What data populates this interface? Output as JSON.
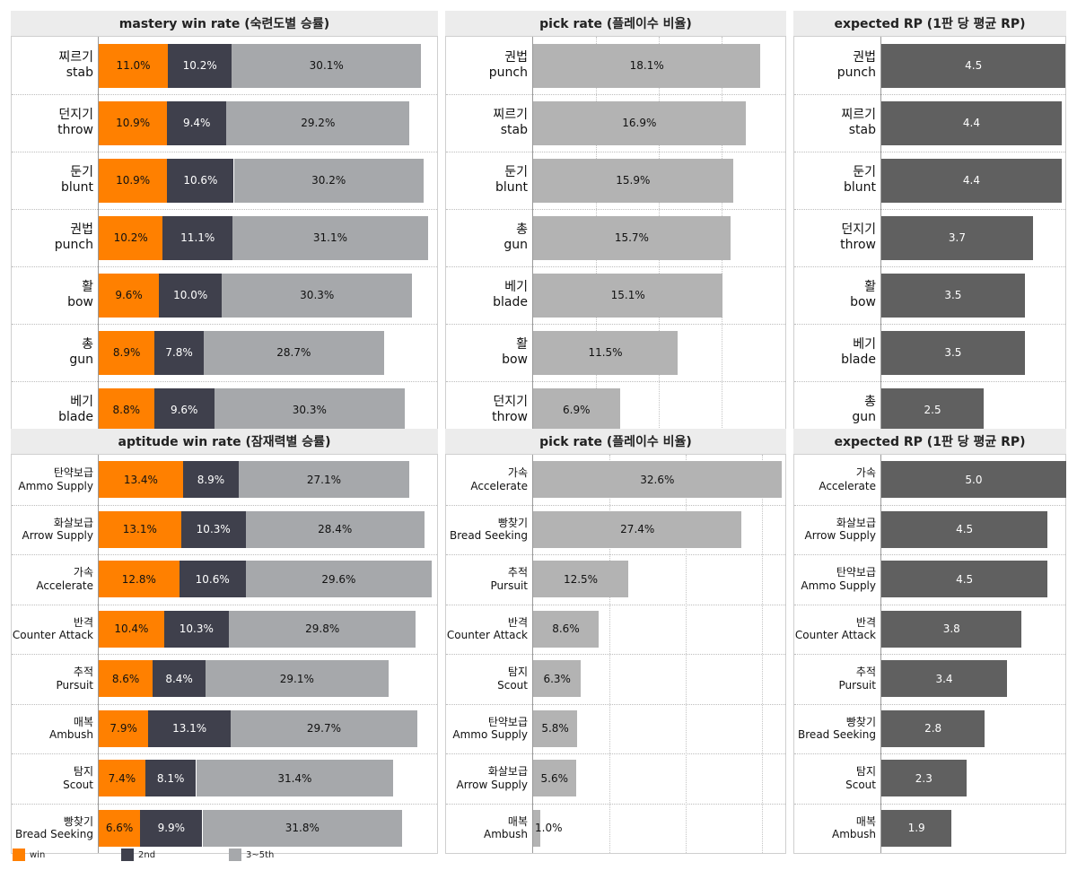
{
  "colors": {
    "win": "#ff8000",
    "second": "#3f404c",
    "third_fifth": "#a6a8ab",
    "pick": "#b3b3b3",
    "rp": "#606060"
  },
  "legend": [
    {
      "key": "win",
      "label": "win"
    },
    {
      "key": "second",
      "label": "2nd"
    },
    {
      "key": "third_fifth",
      "label": "3~5th"
    }
  ],
  "chart_data": [
    {
      "type": "bar",
      "stacked": true,
      "title": "mastery win rate (숙련도별 승률)",
      "categories": [
        {
          "ko": "찌르기",
          "en": "stab"
        },
        {
          "ko": "던지기",
          "en": "throw"
        },
        {
          "ko": "둔기",
          "en": "blunt"
        },
        {
          "ko": "권법",
          "en": "punch"
        },
        {
          "ko": "활",
          "en": "bow"
        },
        {
          "ko": "총",
          "en": "gun"
        },
        {
          "ko": "베기",
          "en": "blade"
        }
      ],
      "xlim": [
        0,
        60
      ],
      "series": [
        {
          "name": "win",
          "values": [
            11.0,
            10.9,
            10.9,
            10.2,
            9.6,
            8.9,
            8.8
          ],
          "labels": [
            "11.0%",
            "10.9%",
            "10.9%",
            "10.2%",
            "9.6%",
            "8.9%",
            "8.8%"
          ]
        },
        {
          "name": "2nd",
          "values": [
            10.2,
            9.4,
            10.6,
            11.1,
            10.0,
            7.8,
            9.6
          ],
          "labels": [
            "10.2%",
            "9.4%",
            "10.6%",
            "11.1%",
            "10.0%",
            "7.8%",
            "9.6%"
          ]
        },
        {
          "name": "3~5th",
          "values": [
            30.1,
            29.2,
            30.2,
            31.1,
            30.3,
            28.7,
            30.3
          ],
          "labels": [
            "30.1%",
            "29.2%",
            "30.2%",
            "31.1%",
            "30.3%",
            "28.7%",
            "30.3%"
          ]
        }
      ]
    },
    {
      "type": "bar",
      "title": "pick rate (플레이수 비율)",
      "categories": [
        {
          "ko": "권법",
          "en": "punch"
        },
        {
          "ko": "찌르기",
          "en": "stab"
        },
        {
          "ko": "둔기",
          "en": "blunt"
        },
        {
          "ko": "총",
          "en": "gun"
        },
        {
          "ko": "베기",
          "en": "blade"
        },
        {
          "ko": "활",
          "en": "bow"
        },
        {
          "ko": "던지기",
          "en": "throw"
        }
      ],
      "xlim": [
        0,
        20
      ],
      "gridlines": [
        5,
        10,
        15
      ],
      "series": [
        {
          "name": "pick rate",
          "values": [
            18.1,
            16.9,
            15.9,
            15.7,
            15.1,
            11.5,
            6.9
          ],
          "labels": [
            "18.1%",
            "16.9%",
            "15.9%",
            "15.7%",
            "15.1%",
            "11.5%",
            "6.9%"
          ]
        }
      ]
    },
    {
      "type": "bar",
      "title": "expected RP (1판 당 평균 RP)",
      "categories": [
        {
          "ko": "권법",
          "en": "punch"
        },
        {
          "ko": "찌르기",
          "en": "stab"
        },
        {
          "ko": "둔기",
          "en": "blunt"
        },
        {
          "ko": "던지기",
          "en": "throw"
        },
        {
          "ko": "활",
          "en": "bow"
        },
        {
          "ko": "베기",
          "en": "blade"
        },
        {
          "ko": "총",
          "en": "gun"
        }
      ],
      "xlim": [
        0,
        4.6
      ],
      "series": [
        {
          "name": "expected RP",
          "values": [
            4.5,
            4.4,
            4.4,
            3.7,
            3.5,
            3.5,
            2.5
          ],
          "labels": [
            "4.5",
            "4.4",
            "4.4",
            "3.7",
            "3.5",
            "3.5",
            "2.5"
          ]
        }
      ]
    },
    {
      "type": "bar",
      "stacked": true,
      "title": "aptitude win rate (잠재력별 승률)",
      "categories": [
        {
          "ko": "탄약보급",
          "en": "Ammo Supply"
        },
        {
          "ko": "화살보급",
          "en": "Arrow Supply"
        },
        {
          "ko": "가속",
          "en": "Accelerate"
        },
        {
          "ko": "반격",
          "en": "Counter Attack"
        },
        {
          "ko": "추적",
          "en": "Pursuit"
        },
        {
          "ko": "매복",
          "en": "Ambush"
        },
        {
          "ko": "탐지",
          "en": "Scout"
        },
        {
          "ko": "빵찾기",
          "en": "Bread Seeking"
        }
      ],
      "xlim": [
        0,
        60
      ],
      "series": [
        {
          "name": "win",
          "values": [
            13.4,
            13.1,
            12.8,
            10.4,
            8.6,
            7.9,
            7.4,
            6.6
          ],
          "labels": [
            "13.4%",
            "13.1%",
            "12.8%",
            "10.4%",
            "8.6%",
            "7.9%",
            "7.4%",
            "6.6%"
          ]
        },
        {
          "name": "2nd",
          "values": [
            8.9,
            10.3,
            10.6,
            10.3,
            8.4,
            13.1,
            8.1,
            9.9
          ],
          "labels": [
            "8.9%",
            "10.3%",
            "10.6%",
            "10.3%",
            "8.4%",
            "13.1%",
            "8.1%",
            "9.9%"
          ]
        },
        {
          "name": "3~5th",
          "values": [
            27.1,
            28.4,
            29.6,
            29.8,
            29.1,
            29.7,
            31.4,
            31.8
          ],
          "labels": [
            "27.1%",
            "28.4%",
            "29.6%",
            "29.8%",
            "29.1%",
            "29.7%",
            "31.4%",
            "31.8%"
          ]
        }
      ]
    },
    {
      "type": "bar",
      "title": "pick rate (플레이수 비율)",
      "categories": [
        {
          "ko": "가속",
          "en": "Accelerate"
        },
        {
          "ko": "빵찾기",
          "en": "Bread Seeking"
        },
        {
          "ko": "추적",
          "en": "Pursuit"
        },
        {
          "ko": "반격",
          "en": "Counter Attack"
        },
        {
          "ko": "탐지",
          "en": "Scout"
        },
        {
          "ko": "탄약보급",
          "en": "Ammo Supply"
        },
        {
          "ko": "화살보급",
          "en": "Arrow Supply"
        },
        {
          "ko": "매복",
          "en": "Ambush"
        }
      ],
      "xlim": [
        0,
        33
      ],
      "gridlines": [
        10,
        20,
        30
      ],
      "series": [
        {
          "name": "pick rate",
          "values": [
            32.6,
            27.4,
            12.5,
            8.6,
            6.3,
            5.8,
            5.6,
            1.0
          ],
          "labels": [
            "32.6%",
            "27.4%",
            "12.5%",
            "8.6%",
            "6.3%",
            "5.8%",
            "5.6%",
            "1.0%"
          ]
        }
      ]
    },
    {
      "type": "bar",
      "title": "expected RP (1판 당 평균 RP)",
      "categories": [
        {
          "ko": "가속",
          "en": "Accelerate"
        },
        {
          "ko": "화살보급",
          "en": "Arrow Supply"
        },
        {
          "ko": "탄약보급",
          "en": "Ammo Supply"
        },
        {
          "ko": "반격",
          "en": "Counter Attack"
        },
        {
          "ko": "추적",
          "en": "Pursuit"
        },
        {
          "ko": "빵찾기",
          "en": "Bread Seeking"
        },
        {
          "ko": "탐지",
          "en": "Scout"
        },
        {
          "ko": "매복",
          "en": "Ambush"
        }
      ],
      "xlim": [
        0,
        5.1
      ],
      "series": [
        {
          "name": "expected RP",
          "values": [
            5.0,
            4.5,
            4.5,
            3.8,
            3.4,
            2.8,
            2.3,
            1.9
          ],
          "labels": [
            "5.0",
            "4.5",
            "4.5",
            "3.8",
            "3.4",
            "2.8",
            "2.3",
            "1.9"
          ]
        }
      ]
    }
  ]
}
